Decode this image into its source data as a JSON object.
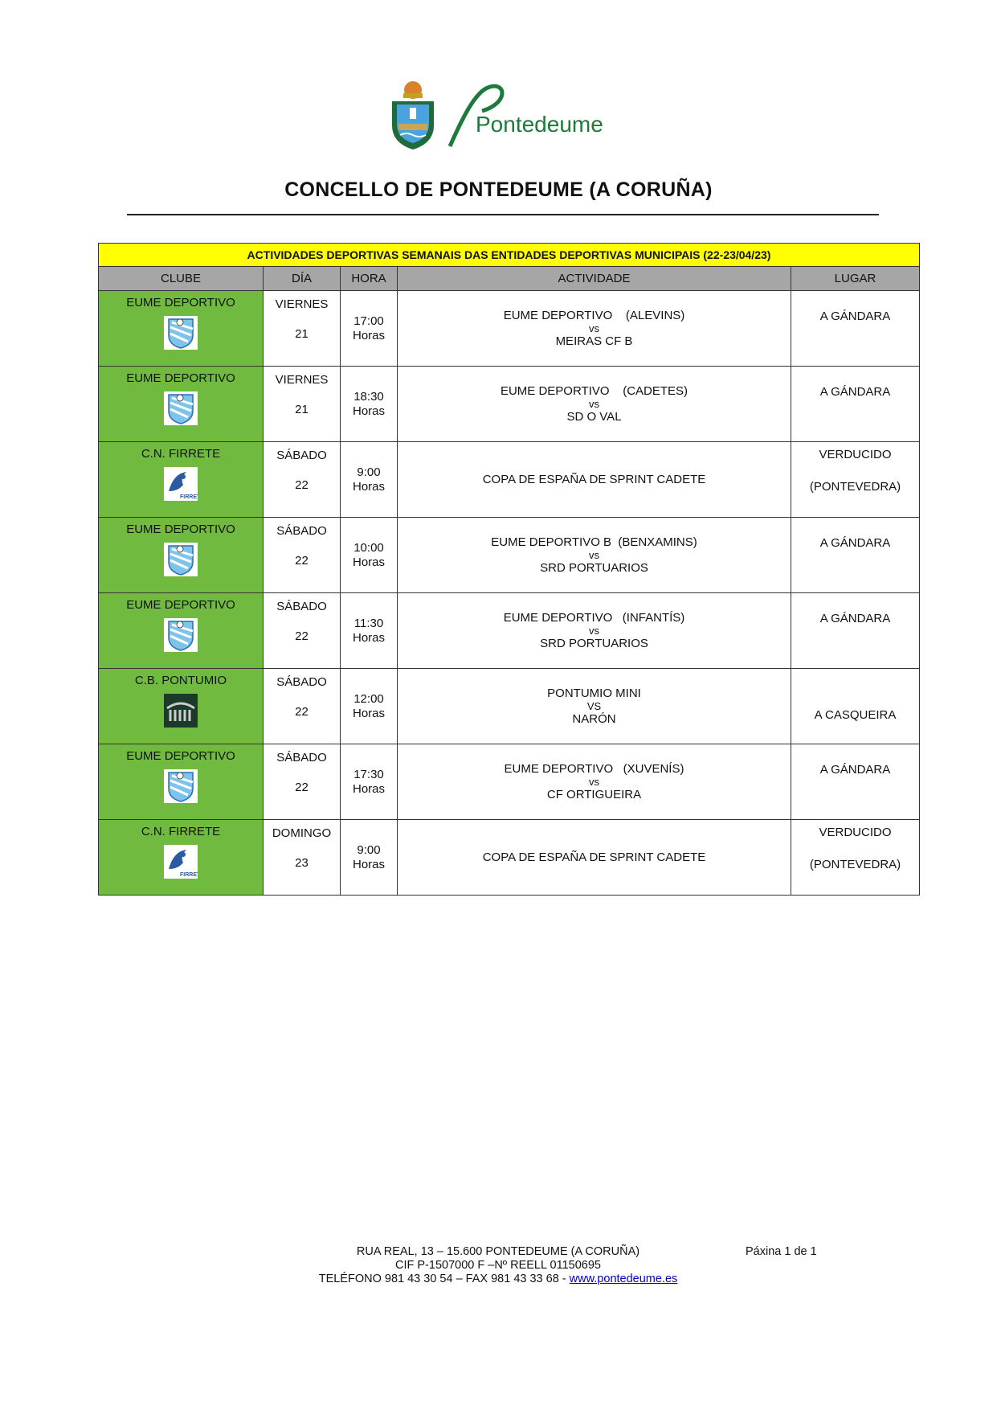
{
  "header": {
    "logo_text": "Pontedeume",
    "title": "CONCELLO DE PONTEDEUME (A CORUÑA)"
  },
  "table": {
    "caption": "ACTIVIDADES DEPORTIVAS SEMANAIS DAS ENTIDADES DEPORTIVAS MUNICIPAIS (22-23/04/23)",
    "columns": [
      "CLUBE",
      "DÍA",
      "HORA",
      "ACTIVIDADE",
      "LUGAR"
    ],
    "rows": [
      {
        "club": "EUME DEPORTIVO",
        "logo": "eume-shield",
        "day": "VIERNES",
        "date": "21",
        "time": "17:00",
        "unit": "Horas",
        "act1": "EUME DEPORTIVO    (ALEVINS)",
        "vs": "vs",
        "act2": "MEIRAS CF B",
        "place1": "A GÁNDARA",
        "place2": ""
      },
      {
        "club": "EUME DEPORTIVO",
        "logo": "eume-shield",
        "day": "VIERNES",
        "date": "21",
        "time": "18:30",
        "unit": "Horas",
        "act1": "EUME DEPORTIVO    (CADETES)",
        "vs": "vs",
        "act2": "SD O VAL",
        "place1": "A GÁNDARA",
        "place2": ""
      },
      {
        "club": "C.N. FIRRETE",
        "logo": "firrete",
        "day": "SÁBADO",
        "date": "22",
        "time": "9:00",
        "unit": "Horas",
        "act1": "COPA DE ESPAÑA DE SPRINT CADETE",
        "vs": "",
        "act2": "",
        "place1": "VERDUCIDO",
        "place2": "(PONTEVEDRA)"
      },
      {
        "club": "EUME DEPORTIVO",
        "logo": "eume-shield",
        "day": "SÁBADO",
        "date": "22",
        "time": "10:00",
        "unit": "Horas",
        "act1": "EUME DEPORTIVO B  (BENXAMINS)",
        "vs": "vs",
        "act2": "SRD PORTUARIOS",
        "place1": "A GÁNDARA",
        "place2": ""
      },
      {
        "club": "EUME DEPORTIVO",
        "logo": "eume-shield",
        "day": "SÁBADO",
        "date": "22",
        "time": "11:30",
        "unit": "Horas",
        "act1": "EUME DEPORTIVO   (INFANTÍS)",
        "vs": "vs",
        "act2": "SRD PORTUARIOS",
        "place1": "A GÁNDARA",
        "place2": ""
      },
      {
        "club": "C.B. PONTUMIO",
        "logo": "pontumio",
        "day": "SÁBADO",
        "date": "22",
        "time": "12:00",
        "unit": "Horas",
        "act1": "PONTUMIO MINI",
        "vs": "VS",
        "act2": "NARÓN",
        "place1": "A CASQUEIRA",
        "place2": ""
      },
      {
        "club": "EUME DEPORTIVO",
        "logo": "eume-shield",
        "day": "SÁBADO",
        "date": "22",
        "time": "17:30",
        "unit": "Horas",
        "act1": "EUME DEPORTIVO   (XUVENÍS)",
        "vs": "vs",
        "act2": "CF ORTIGUEIRA",
        "place1": "A GÁNDARA",
        "place2": ""
      },
      {
        "club": "C.N. FIRRETE",
        "logo": "firrete",
        "day": "DOMINGO",
        "date": "23",
        "time": "9:00",
        "unit": "Horas",
        "act1": "COPA DE ESPAÑA DE SPRINT CADETE",
        "vs": "",
        "act2": "",
        "place1": "VERDUCIDO",
        "place2": "(PONTEVEDRA)"
      }
    ]
  },
  "footer": {
    "line1": "RUA REAL, 13 – 15.600 PONTEDEUME (A CORUÑA)",
    "line2": "CIF P-1507000 F –Nº REELL 01150695",
    "line3": "TELÉFONO 981 43 30 54 – FAX 981 43 33 68 - ",
    "link": "www.pontedeume.es",
    "page": "Páxina 1 de  1"
  },
  "colors": {
    "caption_bg": "#ffff00",
    "header_bg": "#a6a6a6",
    "club_bg": "#70bb3f",
    "logo_green": "#1e7a3a",
    "link": "#0000cc"
  }
}
